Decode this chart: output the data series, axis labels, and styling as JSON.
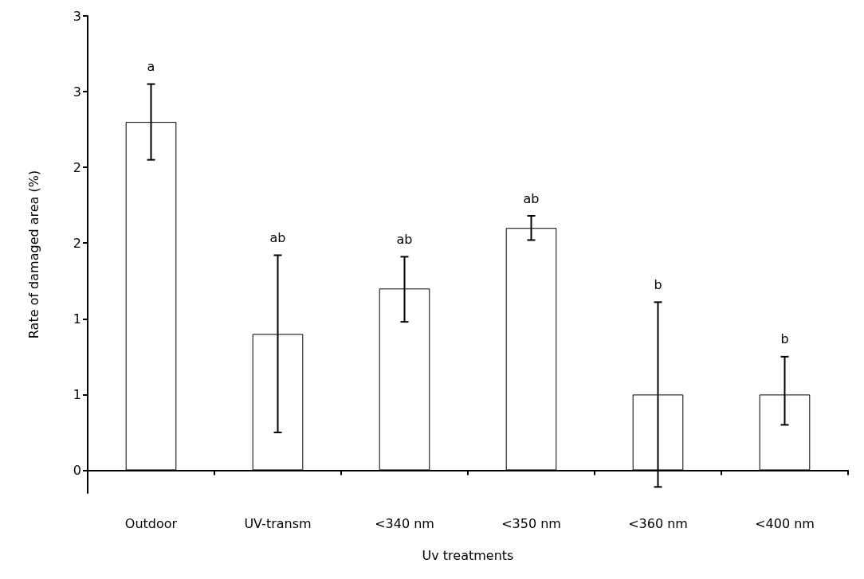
{
  "chart_data": {
    "type": "bar",
    "xlabel": "Uv treatments",
    "ylabel": "Rate of damaged area (%)",
    "categories": [
      "Outdoor",
      "UV-transm",
      "<340 nm",
      "<350 nm",
      "<360 nm",
      "<400 nm"
    ],
    "values": [
      2.3,
      0.9,
      1.2,
      1.6,
      0.5,
      0.5
    ],
    "errors": [
      [
        2.05,
        2.55
      ],
      [
        0.25,
        1.42
      ],
      [
        0.98,
        1.41
      ],
      [
        1.52,
        1.68
      ],
      [
        -0.11,
        1.11
      ],
      [
        0.3,
        0.75
      ]
    ],
    "color": "#ffffff",
    "ylim": [
      -0.15,
      3
    ],
    "yticks": [
      {
        "value": 0,
        "label": "0"
      },
      {
        "value": 0.5,
        "label": "1"
      },
      {
        "value": 1,
        "label": "1"
      },
      {
        "value": 1.5,
        "label": "2"
      },
      {
        "value": 2,
        "label": "2"
      },
      {
        "value": 2.5,
        "label": "3"
      },
      {
        "value": 3,
        "label": "3"
      }
    ],
    "annotations": [
      "a",
      "ab",
      "ab",
      "ab",
      "b",
      "b"
    ]
  }
}
